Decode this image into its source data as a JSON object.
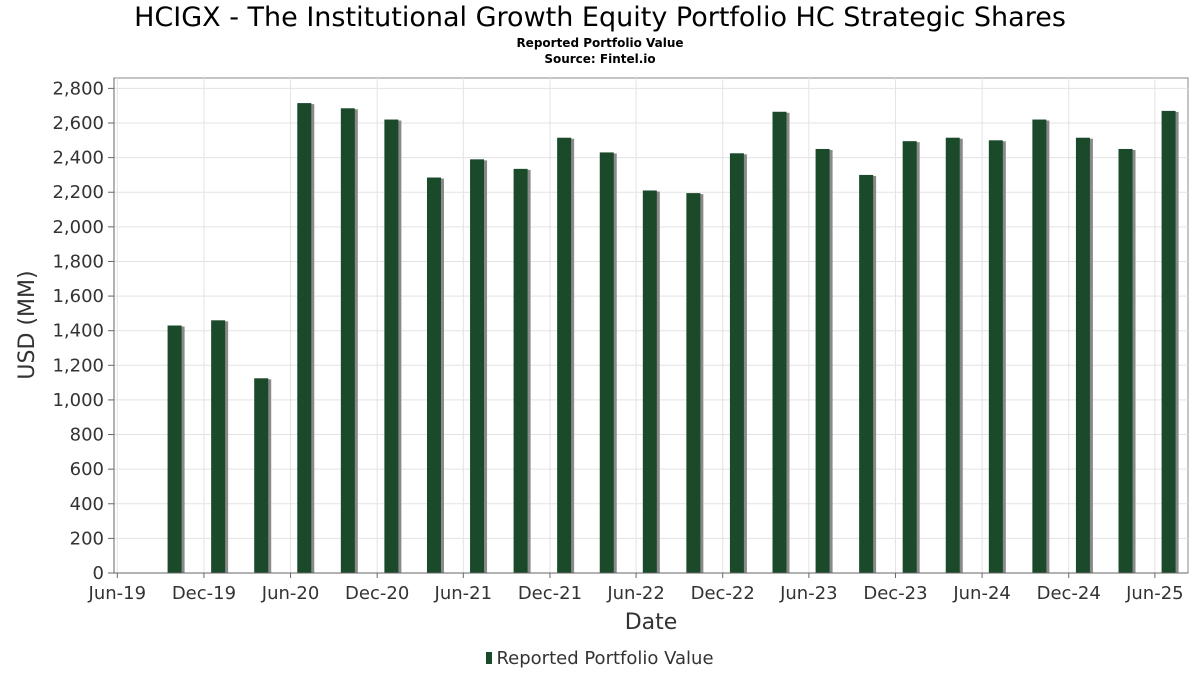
{
  "chart_data": {
    "type": "bar",
    "title": "HCIGX - The Institutional Growth Equity Portfolio HC Strategic Shares",
    "subtitles": [
      "Reported Portfolio Value",
      "Source: Fintel.io"
    ],
    "xlabel": "Date",
    "ylabel": "USD (MM)",
    "ylim": [
      0,
      2860
    ],
    "yticks": [
      0,
      200,
      400,
      600,
      800,
      1000,
      1200,
      1400,
      1600,
      1800,
      2000,
      2200,
      2400,
      2600,
      2800
    ],
    "ytick_labels": [
      "0",
      "200",
      "400",
      "600",
      "800",
      "1,000",
      "1,200",
      "1,400",
      "1,600",
      "1,800",
      "2,000",
      "2,200",
      "2,400",
      "2,600",
      "2,800"
    ],
    "xlim": [
      "2019-05-25",
      "2025-08-10"
    ],
    "xticks": [
      "2019-06-01",
      "2019-12-01",
      "2020-06-01",
      "2020-12-01",
      "2021-06-01",
      "2021-12-01",
      "2022-06-01",
      "2022-12-01",
      "2023-06-01",
      "2023-12-01",
      "2024-06-01",
      "2024-12-01",
      "2025-06-01"
    ],
    "xtick_labels": [
      "Jun-19",
      "Dec-19",
      "Jun-20",
      "Dec-20",
      "Jun-21",
      "Dec-21",
      "Jun-22",
      "Dec-22",
      "Jun-23",
      "Dec-23",
      "Jun-24",
      "Dec-24",
      "Jun-25"
    ],
    "grid": true,
    "legend_position": "bottom-center",
    "series": [
      {
        "name": "Reported Portfolio Value",
        "color": "#1a4a2a",
        "x": [
          "2019-09-30",
          "2019-12-31",
          "2020-03-31",
          "2020-06-30",
          "2020-09-30",
          "2020-12-31",
          "2021-03-31",
          "2021-06-30",
          "2021-09-30",
          "2021-12-31",
          "2022-03-31",
          "2022-06-30",
          "2022-09-30",
          "2022-12-31",
          "2023-03-31",
          "2023-06-30",
          "2023-09-30",
          "2023-12-31",
          "2024-03-31",
          "2024-06-30",
          "2024-09-30",
          "2024-12-31",
          "2025-03-31",
          "2025-06-30"
        ],
        "values": [
          1430,
          1460,
          1125,
          2715,
          2685,
          2620,
          2285,
          2390,
          2335,
          2515,
          2430,
          2210,
          2195,
          2425,
          2665,
          2450,
          2300,
          2495,
          2515,
          2500,
          2620,
          2515,
          2450,
          2670
        ]
      }
    ]
  }
}
